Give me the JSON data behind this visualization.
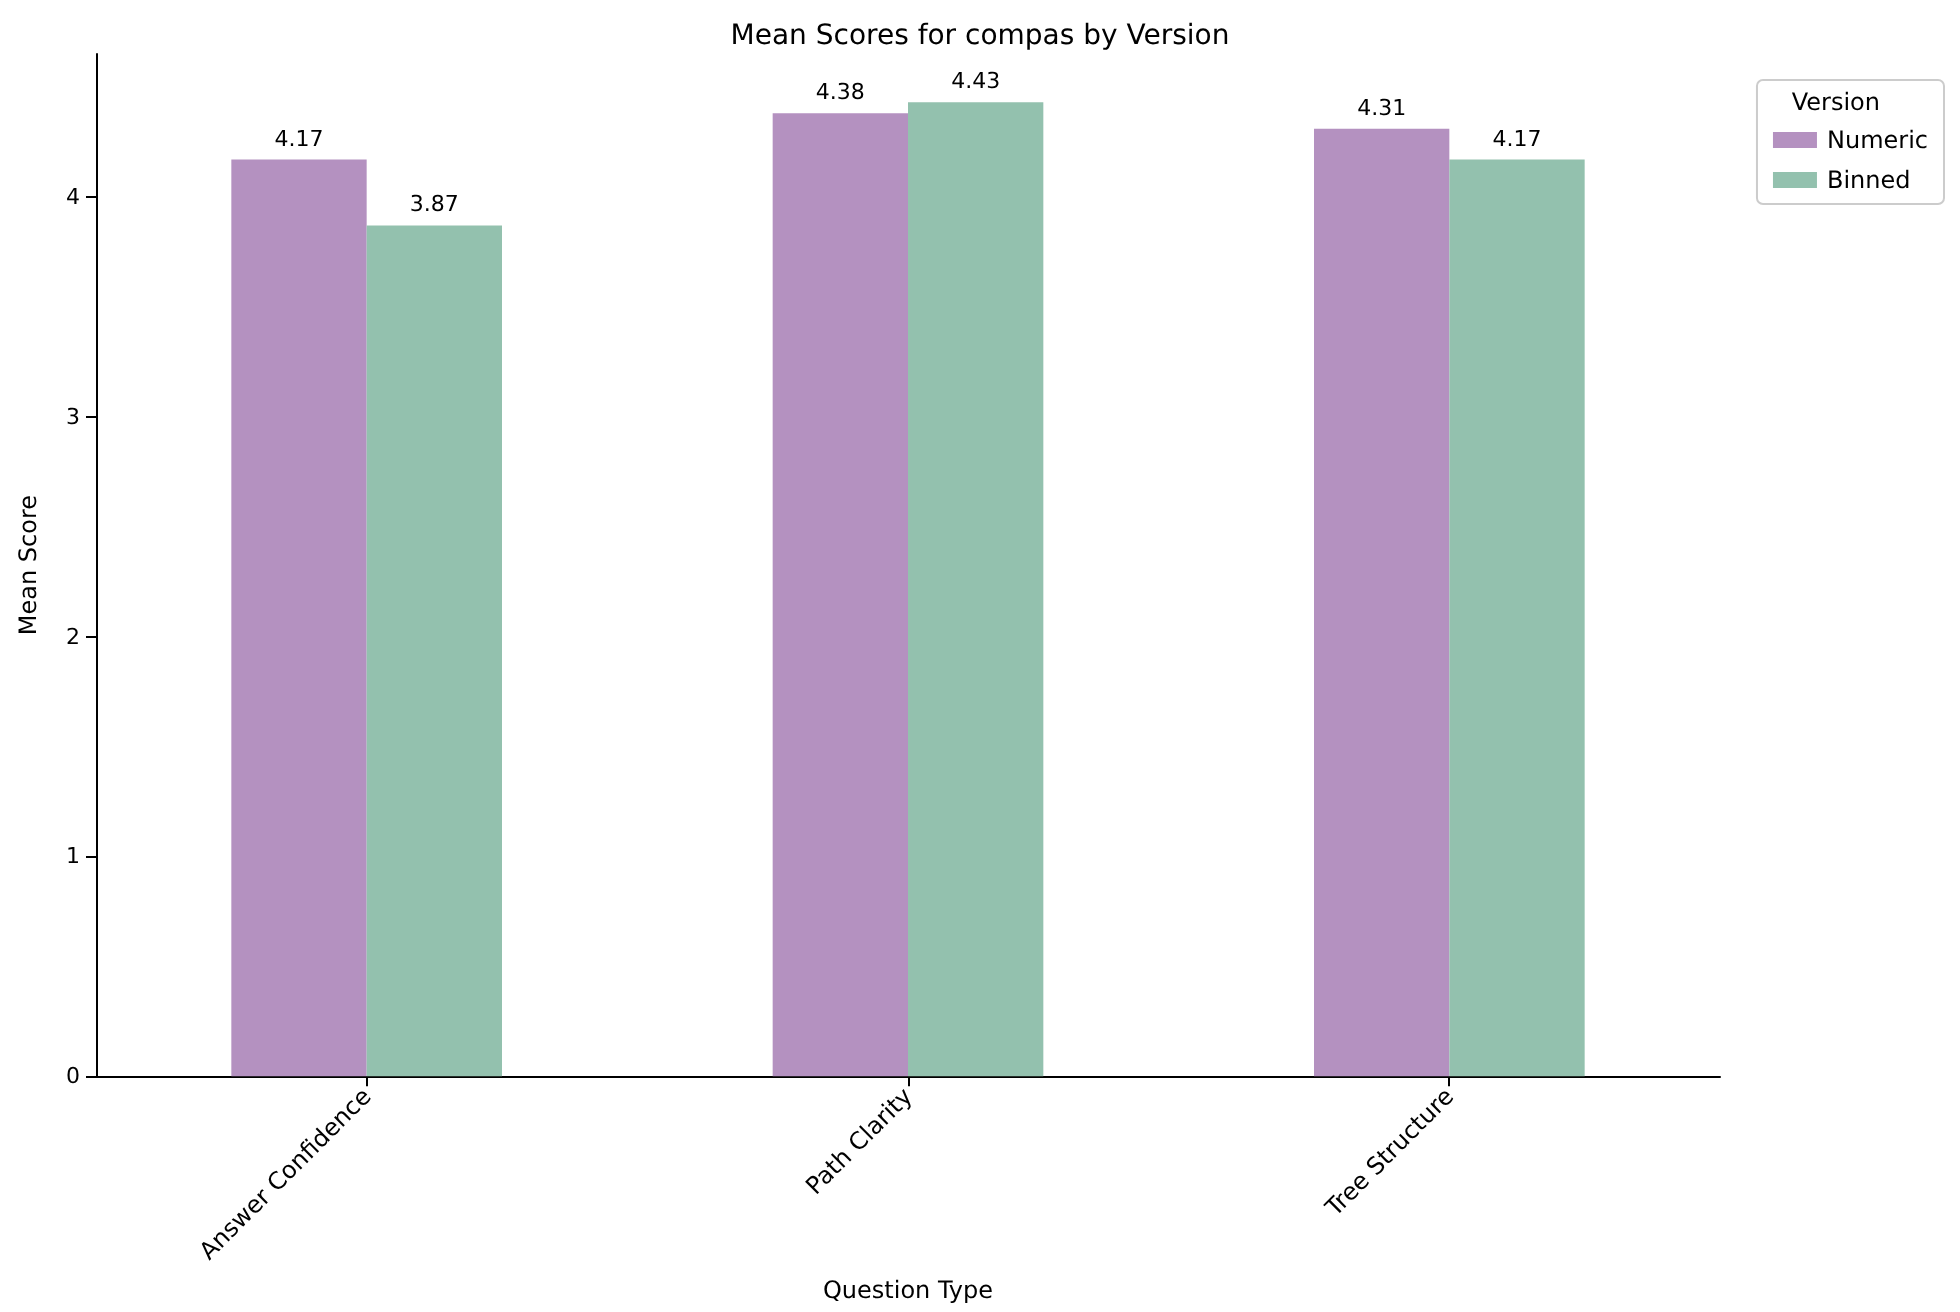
{
  "chart_data": {
    "type": "bar",
    "title": "Mean Scores for compas by Version",
    "xlabel": "Question Type",
    "ylabel": "Mean Score",
    "legend_title": "Version",
    "categories": [
      "Answer Confidence",
      "Path Clarity",
      "Tree Structure"
    ],
    "series": [
      {
        "name": "Numeric",
        "color": "#b491c0",
        "values": [
          4.17,
          4.38,
          4.31
        ]
      },
      {
        "name": "Binned",
        "color": "#93c1ae",
        "values": [
          3.87,
          4.43,
          4.17
        ]
      }
    ],
    "ylim": [
      0,
      4.65
    ],
    "yticks": [
      0,
      1,
      2,
      3,
      4
    ],
    "grid": false,
    "legend": "right",
    "data_labels": true
  }
}
